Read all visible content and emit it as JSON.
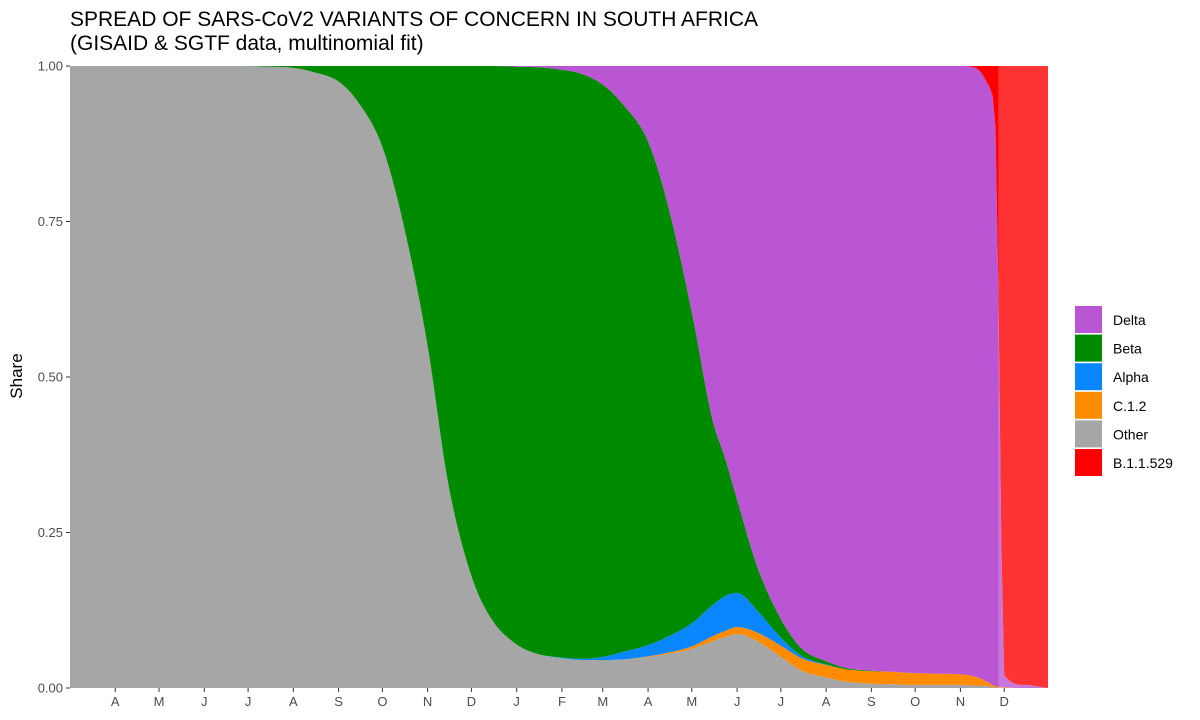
{
  "chart_data": {
    "type": "area",
    "stacked": true,
    "normalized": true,
    "title": "SPREAD OF SARS-CoV2 VARIANTS OF CONCERN IN SOUTH AFRICA",
    "subtitle": "(GISAID & SGTF data, multinomial fit)",
    "xlabel": "",
    "ylabel": "Share",
    "ylim": [
      0,
      1
    ],
    "y_ticks": [
      "0.00",
      "0.25",
      "0.50",
      "0.75",
      "1.00"
    ],
    "x_range": [
      "2020-03-01",
      "2021-12-31"
    ],
    "x_ticks": [
      {
        "date": "2020-04-01",
        "label": "A"
      },
      {
        "date": "2020-05-01",
        "label": "M"
      },
      {
        "date": "2020-06-01",
        "label": "J"
      },
      {
        "date": "2020-07-01",
        "label": "J"
      },
      {
        "date": "2020-08-01",
        "label": "A"
      },
      {
        "date": "2020-09-01",
        "label": "S"
      },
      {
        "date": "2020-10-01",
        "label": "O"
      },
      {
        "date": "2020-11-01",
        "label": "N"
      },
      {
        "date": "2020-12-01",
        "label": "D"
      },
      {
        "date": "2021-01-01",
        "label": "J"
      },
      {
        "date": "2021-02-01",
        "label": "F"
      },
      {
        "date": "2021-03-01",
        "label": "M"
      },
      {
        "date": "2021-04-01",
        "label": "A"
      },
      {
        "date": "2021-05-01",
        "label": "M"
      },
      {
        "date": "2021-06-01",
        "label": "J"
      },
      {
        "date": "2021-07-01",
        "label": "J"
      },
      {
        "date": "2021-08-01",
        "label": "A"
      },
      {
        "date": "2021-09-01",
        "label": "S"
      },
      {
        "date": "2021-10-01",
        "label": "O"
      },
      {
        "date": "2021-11-01",
        "label": "N"
      },
      {
        "date": "2021-12-01",
        "label": "D"
      }
    ],
    "x": [
      "2020-03-01",
      "2020-06-15",
      "2020-07-15",
      "2020-08-01",
      "2020-08-15",
      "2020-09-01",
      "2020-09-15",
      "2020-10-01",
      "2020-10-15",
      "2020-11-01",
      "2020-11-15",
      "2020-12-01",
      "2020-12-15",
      "2021-01-01",
      "2021-01-15",
      "2021-02-01",
      "2021-02-15",
      "2021-03-01",
      "2021-03-15",
      "2021-04-01",
      "2021-04-15",
      "2021-05-01",
      "2021-05-15",
      "2021-05-24",
      "2021-06-01",
      "2021-06-15",
      "2021-07-01",
      "2021-07-15",
      "2021-08-01",
      "2021-08-15",
      "2021-09-01",
      "2021-09-15",
      "2021-10-01",
      "2021-10-15",
      "2021-11-01",
      "2021-11-10",
      "2021-11-15",
      "2021-11-20",
      "2021-11-25",
      "2021-12-01",
      "2021-12-15",
      "2021-12-31"
    ],
    "series": [
      {
        "name": "Other",
        "color": "#a6a6a6",
        "values": [
          1,
          1,
          0.999,
          0.997,
          0.99,
          0.975,
          0.94,
          0.87,
          0.75,
          0.55,
          0.33,
          0.18,
          0.11,
          0.07,
          0.055,
          0.048,
          0.045,
          0.045,
          0.046,
          0.05,
          0.055,
          0.063,
          0.075,
          0.082,
          0.087,
          0.075,
          0.05,
          0.028,
          0.017,
          0.01,
          0.007,
          0.006,
          0.005,
          0.005,
          0.005,
          0.004,
          0.004,
          0.003,
          0.001,
          0,
          0,
          0
        ]
      },
      {
        "name": "C.1.2",
        "color": "#ff8c00",
        "values": [
          0,
          0,
          0,
          0,
          0,
          0,
          0,
          0,
          0,
          0,
          0,
          0,
          0,
          0,
          0,
          0,
          0,
          0,
          0,
          0.001,
          0.002,
          0.004,
          0.008,
          0.01,
          0.011,
          0.014,
          0.018,
          0.02,
          0.02,
          0.02,
          0.02,
          0.02,
          0.019,
          0.018,
          0.017,
          0.015,
          0.011,
          0.006,
          0.002,
          0.001,
          0,
          0
        ]
      },
      {
        "name": "Alpha",
        "color": "#0a87ff",
        "values": [
          0,
          0,
          0,
          0,
          0,
          0,
          0,
          0,
          0,
          0,
          0,
          0,
          0,
          0,
          0,
          0.001,
          0.002,
          0.005,
          0.012,
          0.018,
          0.026,
          0.037,
          0.05,
          0.056,
          0.055,
          0.035,
          0.013,
          0.004,
          0.001,
          0,
          0,
          0,
          0,
          0,
          0,
          0,
          0,
          0,
          0,
          0,
          0,
          0
        ]
      },
      {
        "name": "Beta",
        "color": "#008a00",
        "values": [
          0,
          0,
          0.001,
          0.003,
          0.01,
          0.025,
          0.06,
          0.13,
          0.25,
          0.45,
          0.67,
          0.82,
          0.89,
          0.929,
          0.943,
          0.945,
          0.94,
          0.92,
          0.88,
          0.81,
          0.69,
          0.5,
          0.3,
          0.22,
          0.15,
          0.07,
          0.03,
          0.012,
          0.005,
          0.002,
          0.001,
          0,
          0,
          0,
          0,
          0,
          0,
          0,
          0,
          0,
          0,
          0
        ]
      },
      {
        "name": "Delta",
        "color": "#ba55d3",
        "values": [
          0,
          0,
          0,
          0,
          0,
          0,
          0,
          0,
          0,
          0,
          0,
          0,
          0,
          0.001,
          0.002,
          0.006,
          0.013,
          0.03,
          0.062,
          0.121,
          0.227,
          0.396,
          0.567,
          0.632,
          0.697,
          0.806,
          0.889,
          0.936,
          0.957,
          0.968,
          0.972,
          0.974,
          0.976,
          0.977,
          0.978,
          0.979,
          0.975,
          0.96,
          0.9,
          0.02,
          0.005,
          0
        ]
      },
      {
        "name": "B.1.1.529",
        "color": "#ff0000",
        "values": [
          0,
          0,
          0,
          0,
          0,
          0,
          0,
          0,
          0,
          0,
          0,
          0,
          0,
          0,
          0,
          0,
          0,
          0,
          0,
          0,
          0,
          0,
          0,
          0,
          0,
          0,
          0,
          0,
          0,
          0,
          0,
          0,
          0,
          0,
          0,
          0.002,
          0.01,
          0.031,
          0.097,
          0.979,
          0.995,
          1
        ]
      }
    ],
    "overlay": {
      "start": "2021-11-27",
      "opacity": 0.2
    },
    "legend": {
      "position": "right",
      "entries": [
        {
          "name": "Delta",
          "color": "#ba55d3"
        },
        {
          "name": "Beta",
          "color": "#008a00"
        },
        {
          "name": "Alpha",
          "color": "#0a87ff"
        },
        {
          "name": "C.1.2",
          "color": "#ff8c00"
        },
        {
          "name": "Other",
          "color": "#a6a6a6"
        },
        {
          "name": "B.1.1.529",
          "color": "#ff0000"
        }
      ]
    },
    "grid": false
  }
}
